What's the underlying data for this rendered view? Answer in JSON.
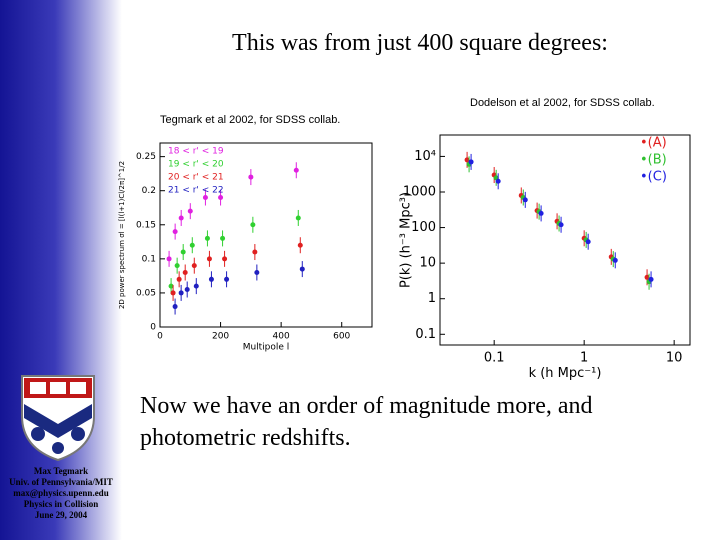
{
  "slide": {
    "title": "This was from just 400 square degrees:",
    "body": "Now we have an order of magnitude more, and photometric redshifts.",
    "footer": [
      "Max Tegmark",
      "Univ. of Pennsylvania/MIT",
      "max@physics.upenn.edu",
      "Physics in Collision",
      "June 29, 2004"
    ]
  },
  "chart_data": [
    {
      "type": "scatter",
      "caption": "Tegmark et al 2002, for SDSS collab.",
      "x_label": "Multipole l",
      "y_label": "2D power spectrum σl = [l(l+1)Cl/2π]^1/2",
      "x": [
        30,
        50,
        70,
        100,
        150,
        200,
        300,
        450
      ],
      "series": [
        {
          "name": "18 < r' < 19",
          "color": "#e020e0",
          "values": [
            0.1,
            0.14,
            0.16,
            0.17,
            0.19,
            0.19,
            0.22,
            0.23
          ]
        },
        {
          "name": "19 < r' < 20",
          "color": "#30d030",
          "values": [
            0.06,
            0.09,
            0.11,
            0.12,
            0.13,
            0.13,
            0.15,
            0.16
          ]
        },
        {
          "name": "20 < r' < 21",
          "color": "#e02020",
          "values": [
            0.05,
            0.07,
            0.08,
            0.09,
            0.1,
            0.1,
            0.11,
            0.12
          ]
        },
        {
          "name": "21 < r' < 22",
          "color": "#2020c0",
          "values": [
            0.03,
            0.05,
            0.055,
            0.06,
            0.07,
            0.07,
            0.08,
            0.085
          ]
        }
      ],
      "xlim": [
        0,
        700
      ],
      "xticks": [
        0,
        200,
        400,
        600
      ],
      "ylim": [
        0,
        0.27
      ],
      "yticks": [
        0,
        0.05,
        0.1,
        0.15,
        0.2,
        0.25
      ],
      "legend": "upper left"
    },
    {
      "type": "scatter",
      "caption": "Dodelson et al 2002, for SDSS collab.",
      "x_label": "k (h Mpc⁻¹)",
      "y_label": "P(k) (h⁻³ Mpc³)",
      "xscale": "log",
      "yscale": "log",
      "x": [
        0.05,
        0.1,
        0.2,
        0.3,
        0.5,
        1,
        2,
        5
      ],
      "series": [
        {
          "name": "•(A)",
          "color": "#e02020",
          "values": [
            8000,
            3000,
            800,
            300,
            150,
            50,
            15,
            4
          ]
        },
        {
          "name": "•(B)",
          "color": "#30c030",
          "values": [
            6000,
            2500,
            700,
            280,
            130,
            45,
            13,
            3
          ]
        },
        {
          "name": "•(C)",
          "color": "#2020e0",
          "values": [
            7000,
            2000,
            600,
            250,
            120,
            40,
            12,
            3.5
          ]
        }
      ],
      "xlim": [
        0.025,
        15
      ],
      "xticks": [
        0.1,
        1,
        10
      ],
      "ylim": [
        0.05,
        40000
      ],
      "yticks": [
        0.1,
        1,
        10,
        100,
        1000,
        {
          "value": 10000,
          "label": "10⁴"
        }
      ],
      "legend": "upper right"
    }
  ]
}
